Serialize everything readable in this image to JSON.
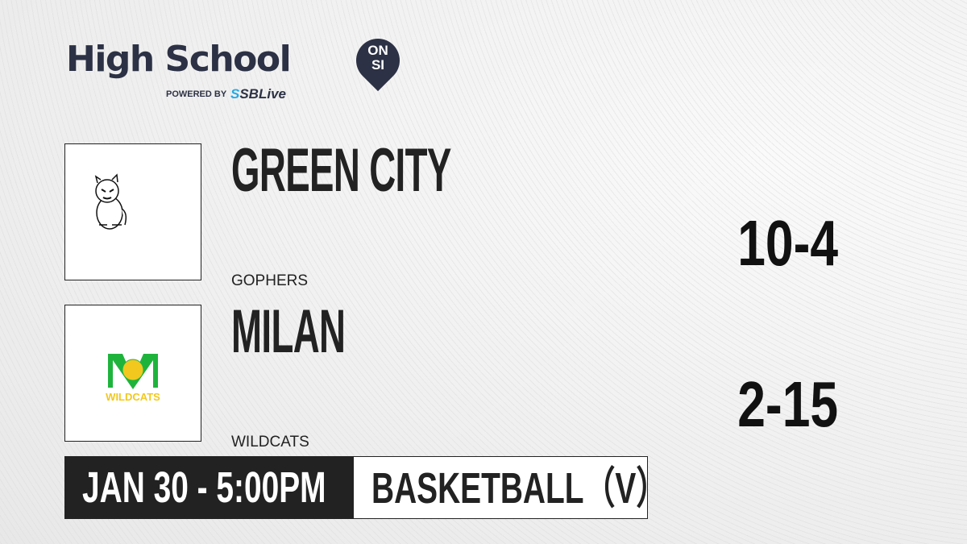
{
  "brand": {
    "title": "High School",
    "badge_line1": "ON",
    "badge_line2": "SI",
    "powered_by": "POWERED BY",
    "partner_prefix": "S",
    "partner": "SBLive"
  },
  "teams": [
    {
      "name": "GREEN CITY",
      "mascot": "GOPHERS",
      "record": "10-4",
      "logo_icon": "gopher-mascot-icon"
    },
    {
      "name": "MILAN",
      "mascot": "WILDCATS",
      "record": "2-15",
      "logo_icon": "wildcats-m-logo-icon",
      "logo_text": "WILDCATS",
      "logo_colors": {
        "green": "#1eb43c",
        "gold": "#f2c81e"
      }
    }
  ],
  "game": {
    "datetime": "JAN 30 - 5:00PM",
    "sport": "BASKETBALL（V）"
  }
}
